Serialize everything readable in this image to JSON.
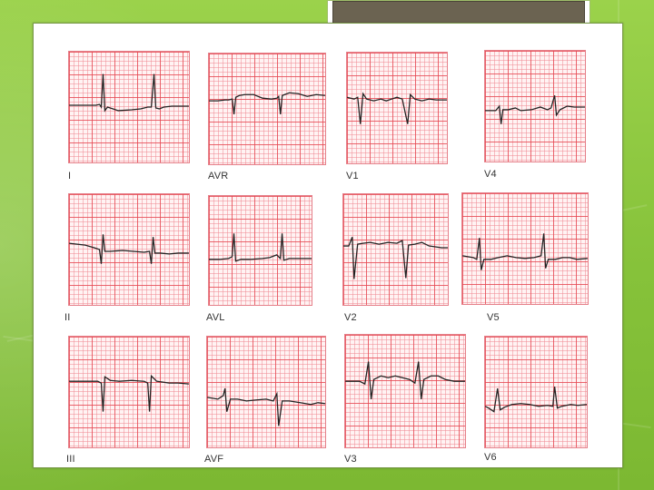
{
  "slide": {
    "title_text": "",
    "leads": [
      {
        "label": "I"
      },
      {
        "label": "AVR"
      },
      {
        "label": "V1"
      },
      {
        "label": "V4"
      },
      {
        "label": "II"
      },
      {
        "label": "AVL"
      },
      {
        "label": "V2"
      },
      {
        "label": "V5"
      },
      {
        "label": "III"
      },
      {
        "label": "AVF"
      },
      {
        "label": "V3"
      },
      {
        "label": "V6"
      }
    ]
  },
  "colors": {
    "background_green": "#8cc63f",
    "title_box": "#6b6351",
    "ecg_grid": "#e64650",
    "ecg_trace": "#222222"
  }
}
